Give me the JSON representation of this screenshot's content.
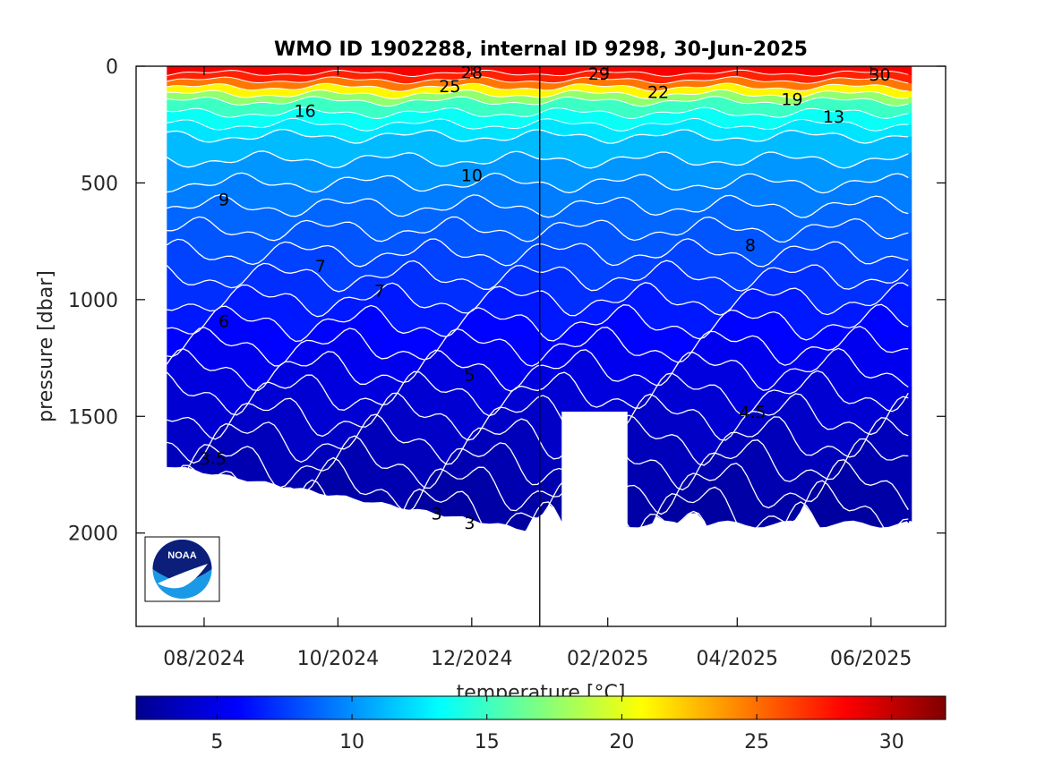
{
  "chart_data": {
    "type": "heatmap",
    "title": "WMO ID 1902288, internal ID 9298, 30-Jun-2025",
    "ylabel": "pressure [dbar]",
    "colorbar_label": "temperature [°C]",
    "y_reversed": true,
    "ylim": [
      0,
      2400
    ],
    "y_ticks": [
      0,
      500,
      1000,
      1500,
      2000
    ],
    "y_tick_labels": [
      "0",
      "500",
      "1000",
      "1500",
      "2000"
    ],
    "x_range": [
      "2024-07-01",
      "2025-07-05"
    ],
    "x_ticks": [
      "2024-08-01",
      "2024-10-01",
      "2024-12-01",
      "2025-02-01",
      "2025-04-01",
      "2025-06-01"
    ],
    "x_tick_labels": [
      "08/2024",
      "10/2024",
      "12/2024",
      "02/2025",
      "04/2025",
      "06/2025"
    ],
    "colorbar_range": [
      2,
      32
    ],
    "colorbar_ticks": [
      5,
      10,
      15,
      20,
      25,
      30
    ],
    "colorbar_tick_labels": [
      "5",
      "10",
      "15",
      "20",
      "25",
      "30"
    ],
    "colormap": "jet",
    "year_boundary": "2025-01-01",
    "data_start": "2024-07-15",
    "data_end": "2025-06-20",
    "data_gap": {
      "start": "2025-01-11",
      "end": "2025-02-10",
      "min_pressure": 1480
    },
    "temperature_profile": [
      {
        "p": 0,
        "t": 29
      },
      {
        "p": 30,
        "t": 28
      },
      {
        "p": 60,
        "t": 26.5
      },
      {
        "p": 90,
        "t": 23
      },
      {
        "p": 120,
        "t": 19
      },
      {
        "p": 150,
        "t": 16
      },
      {
        "p": 200,
        "t": 14
      },
      {
        "p": 250,
        "t": 13
      },
      {
        "p": 300,
        "t": 12
      },
      {
        "p": 400,
        "t": 10.5
      },
      {
        "p": 500,
        "t": 9.8
      },
      {
        "p": 600,
        "t": 9
      },
      {
        "p": 700,
        "t": 8.5
      },
      {
        "p": 800,
        "t": 8
      },
      {
        "p": 900,
        "t": 7.4
      },
      {
        "p": 1000,
        "t": 6.8
      },
      {
        "p": 1100,
        "t": 6.1
      },
      {
        "p": 1200,
        "t": 5.5
      },
      {
        "p": 1300,
        "t": 5.0
      },
      {
        "p": 1400,
        "t": 4.6
      },
      {
        "p": 1500,
        "t": 4.3
      },
      {
        "p": 1600,
        "t": 3.9
      },
      {
        "p": 1700,
        "t": 3.6
      },
      {
        "p": 1800,
        "t": 3.3
      },
      {
        "p": 1900,
        "t": 3.05
      },
      {
        "p": 2000,
        "t": 2.9
      }
    ],
    "contour_labels": [
      {
        "text": "28",
        "x": "2024-12-01",
        "p": 25
      },
      {
        "text": "25",
        "x": "2024-11-21",
        "p": 85
      },
      {
        "text": "16",
        "x": "2024-09-16",
        "p": 190
      },
      {
        "text": "10",
        "x": "2024-12-01",
        "p": 465
      },
      {
        "text": "9",
        "x": "2024-08-10",
        "p": 570
      },
      {
        "text": "7",
        "x": "2024-09-23",
        "p": 855
      },
      {
        "text": "7",
        "x": "2024-10-20",
        "p": 960
      },
      {
        "text": "6",
        "x": "2024-08-10",
        "p": 1090
      },
      {
        "text": "5",
        "x": "2024-11-30",
        "p": 1320
      },
      {
        "text": "3.5",
        "x": "2024-08-05",
        "p": 1680
      },
      {
        "text": "3",
        "x": "2024-11-15",
        "p": 1915
      },
      {
        "text": "3",
        "x": "2024-11-30",
        "p": 1955
      },
      {
        "text": "29",
        "x": "2025-01-28",
        "p": 30
      },
      {
        "text": "22",
        "x": "2025-02-24",
        "p": 110
      },
      {
        "text": "19",
        "x": "2025-04-26",
        "p": 140
      },
      {
        "text": "13",
        "x": "2025-05-15",
        "p": 215
      },
      {
        "text": "8",
        "x": "2025-04-07",
        "p": 765
      },
      {
        "text": "4.5",
        "x": "2025-04-08",
        "p": 1480
      },
      {
        "text": "30",
        "x": "2025-06-05",
        "p": 35
      }
    ]
  }
}
